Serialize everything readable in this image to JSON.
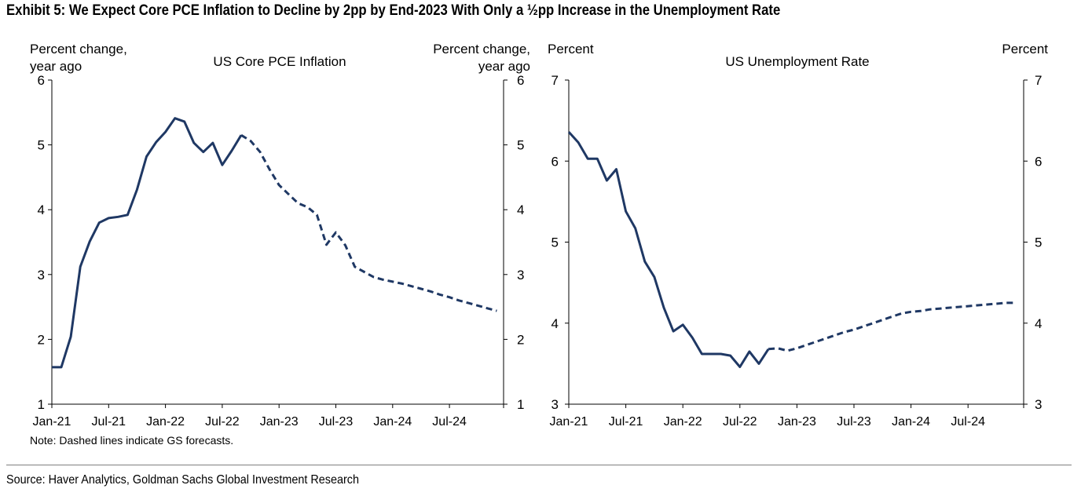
{
  "header": {
    "title": "Exhibit 5: We Expect Core PCE Inflation to Decline by 2pp by End-2023 With Only a ½pp Increase in the Unemployment Rate"
  },
  "note": "Note: Dashed lines indicate GS forecasts.",
  "source": "Source: Haver Analytics, Goldman Sachs Global Investment Research",
  "colors": {
    "series": "#1f3864",
    "axis": "#000000",
    "rule": "#7f7f7f"
  },
  "chart_data": [
    {
      "type": "line",
      "title": "US Core PCE Inflation",
      "ylabel_left": [
        "Percent change,",
        "year ago"
      ],
      "ylabel_right": [
        "Percent change,",
        "year ago"
      ],
      "ylim": [
        1,
        6
      ],
      "yticks": [
        1,
        2,
        3,
        4,
        5,
        6
      ],
      "xlim": [
        "2021-01",
        "2024-12"
      ],
      "xtick_labels": [
        "Jan-21",
        "Jul-21",
        "Jan-22",
        "Jul-22",
        "Jan-23",
        "Jul-23",
        "Jan-24",
        "Jul-24"
      ],
      "grid": false,
      "series": [
        {
          "style": "solid",
          "x": [
            "2021-01",
            "2021-02",
            "2021-03",
            "2021-04",
            "2021-05",
            "2021-06",
            "2021-07",
            "2021-08",
            "2021-09",
            "2021-10",
            "2021-11",
            "2021-12",
            "2022-01",
            "2022-02",
            "2022-03",
            "2022-04",
            "2022-05",
            "2022-06",
            "2022-07",
            "2022-08",
            "2022-09"
          ],
          "values": [
            1.57,
            1.57,
            2.04,
            3.12,
            3.51,
            3.8,
            3.87,
            3.89,
            3.92,
            4.31,
            4.82,
            5.04,
            5.2,
            5.41,
            5.36,
            5.03,
            4.89,
            5.03,
            4.69,
            4.91,
            5.15
          ]
        },
        {
          "style": "dashed",
          "x": [
            "2022-09",
            "2022-10",
            "2022-11",
            "2022-12",
            "2023-01",
            "2023-02",
            "2023-03",
            "2023-04",
            "2023-05",
            "2023-06",
            "2023-07",
            "2023-08",
            "2023-09",
            "2023-10",
            "2023-11",
            "2023-12",
            "2024-01",
            "2024-02",
            "2024-03",
            "2024-04",
            "2024-05",
            "2024-06",
            "2024-07",
            "2024-08",
            "2024-09",
            "2024-10",
            "2024-11",
            "2024-12"
          ],
          "values": [
            5.15,
            5.06,
            4.89,
            4.62,
            4.38,
            4.24,
            4.1,
            4.04,
            3.92,
            3.46,
            3.65,
            3.45,
            3.12,
            3.04,
            2.96,
            2.92,
            2.89,
            2.86,
            2.82,
            2.78,
            2.74,
            2.69,
            2.65,
            2.6,
            2.56,
            2.52,
            2.48,
            2.44
          ]
        }
      ]
    },
    {
      "type": "line",
      "title": "US Unemployment Rate",
      "ylabel_left": [
        "Percent"
      ],
      "ylabel_right": [
        "Percent"
      ],
      "ylim": [
        3,
        7
      ],
      "yticks": [
        3,
        4,
        5,
        6,
        7
      ],
      "xlim": [
        "2021-01",
        "2024-12"
      ],
      "xtick_labels": [
        "Jan-21",
        "Jul-21",
        "Jan-22",
        "Jul-22",
        "Jan-23",
        "Jul-23",
        "Jan-24",
        "Jul-24"
      ],
      "grid": false,
      "series": [
        {
          "style": "solid",
          "x": [
            "2021-01",
            "2021-02",
            "2021-03",
            "2021-04",
            "2021-05",
            "2021-06",
            "2021-07",
            "2021-08",
            "2021-09",
            "2021-10",
            "2021-11",
            "2021-12",
            "2022-01",
            "2022-02",
            "2022-03",
            "2022-04",
            "2022-05",
            "2022-06",
            "2022-07",
            "2022-08",
            "2022-09",
            "2022-10"
          ],
          "values": [
            6.36,
            6.23,
            6.03,
            6.03,
            5.76,
            5.9,
            5.38,
            5.17,
            4.76,
            4.57,
            4.19,
            3.9,
            3.98,
            3.82,
            3.62,
            3.62,
            3.62,
            3.6,
            3.46,
            3.65,
            3.5,
            3.68
          ]
        },
        {
          "style": "dashed",
          "x": [
            "2022-10",
            "2022-11",
            "2022-12",
            "2023-01",
            "2023-02",
            "2023-03",
            "2023-04",
            "2023-05",
            "2023-06",
            "2023-07",
            "2023-08",
            "2023-09",
            "2023-10",
            "2023-11",
            "2023-12",
            "2024-01",
            "2024-02",
            "2024-03",
            "2024-04",
            "2024-05",
            "2024-06",
            "2024-07",
            "2024-08",
            "2024-09",
            "2024-10",
            "2024-11",
            "2024-12"
          ],
          "values": [
            3.68,
            3.69,
            3.66,
            3.69,
            3.73,
            3.77,
            3.81,
            3.85,
            3.89,
            3.92,
            3.96,
            4.0,
            4.04,
            4.08,
            4.12,
            4.14,
            4.15,
            4.17,
            4.18,
            4.19,
            4.2,
            4.21,
            4.22,
            4.23,
            4.24,
            4.25,
            4.25
          ]
        }
      ]
    }
  ]
}
